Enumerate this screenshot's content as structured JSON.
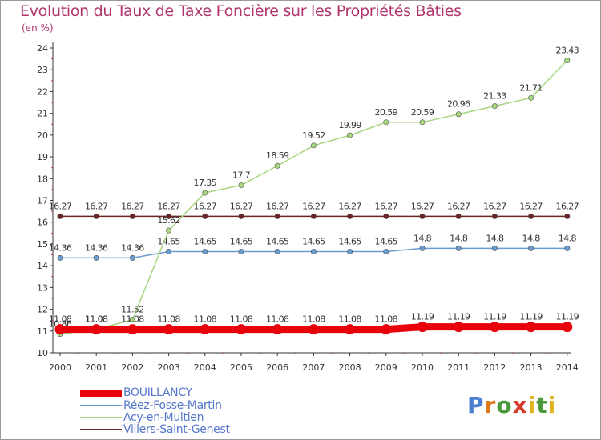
{
  "title": "Evolution du Taux de Taxe Foncière sur les Propriétés Bâties",
  "subtitle": "(en %)",
  "logo": [
    "P",
    "r",
    "o",
    "x",
    "i",
    "t",
    "i"
  ],
  "colors": {
    "title": "#b0366e",
    "axis": "#333333",
    "legend_text": "#5577cc",
    "logo": [
      "#4a7fcf",
      "#e07a1f",
      "#4a9a3a",
      "#d63a2a",
      "#e0b41f",
      "#4a9a3a",
      "#e0b41f"
    ]
  },
  "chart_data": {
    "type": "line",
    "title": "Evolution du Taux de Taxe Foncière sur les Propriétés Bâties",
    "ylabel": "(en %)",
    "xlabel": "",
    "ylim": [
      10,
      24
    ],
    "yticks": [
      "10",
      "11",
      "12",
      "13",
      "14",
      "15",
      "16",
      "17",
      "18",
      "19",
      "20",
      "21",
      "22",
      "23",
      "24"
    ],
    "categories": [
      "2000",
      "2001",
      "2002",
      "2003",
      "2004",
      "2005",
      "2006",
      "2007",
      "2008",
      "2009",
      "2010",
      "2011",
      "2012",
      "2013",
      "2014"
    ],
    "series": [
      {
        "name": "Villers-Saint-Genest",
        "color": "#6b2426",
        "values": [
          16.27,
          16.27,
          16.27,
          16.27,
          16.27,
          16.27,
          16.27,
          16.27,
          16.27,
          16.27,
          16.27,
          16.27,
          16.27,
          16.27,
          16.27
        ],
        "labels": [
          "16.27",
          "16.27",
          "16.27",
          "16.27",
          "16.27",
          "16.27",
          "16.27",
          "16.27",
          "16.27",
          "16.27",
          "16.27",
          "16.27",
          "16.27",
          "16.27",
          "16.27"
        ]
      },
      {
        "name": "Réez-Fosse-Martin",
        "color": "#6a9bcf",
        "values": [
          14.36,
          14.36,
          14.36,
          14.65,
          14.65,
          14.65,
          14.65,
          14.65,
          14.65,
          14.65,
          14.8,
          14.8,
          14.8,
          14.8,
          14.8
        ],
        "labels": [
          "14.36",
          "14.36",
          "14.36",
          "14.65",
          "14.65",
          "14.65",
          "14.65",
          "14.65",
          "14.65",
          "14.65",
          "14.8",
          "14.8",
          "14.8",
          "14.8",
          "14.8"
        ]
      },
      {
        "name": "Acy-en-Multien",
        "color": "#a6d67e",
        "values": [
          10.86,
          11.08,
          11.52,
          15.62,
          17.35,
          17.7,
          18.59,
          19.52,
          19.99,
          20.59,
          20.59,
          20.96,
          21.33,
          21.71,
          23.43
        ],
        "labels": [
          "10.86",
          "11.08",
          "11.52",
          "15.62",
          "17.35",
          "17.7",
          "18.59",
          "19.52",
          "19.99",
          "20.59",
          "20.59",
          "20.96",
          "21.33",
          "21.71",
          "23.43"
        ]
      },
      {
        "name": "BOUILLANCY",
        "color": "#e8000b",
        "values": [
          11.08,
          11.08,
          11.08,
          11.08,
          11.08,
          11.08,
          11.08,
          11.08,
          11.08,
          11.08,
          11.19,
          11.19,
          11.19,
          11.19,
          11.19
        ],
        "labels": [
          "11.08",
          "11.08",
          "11.08",
          "11.08",
          "11.08",
          "11.08",
          "11.08",
          "11.08",
          "11.08",
          "11.08",
          "11.19",
          "11.19",
          "11.19",
          "11.19",
          "11.19"
        ]
      }
    ],
    "legend": [
      "BOUILLANCY",
      "Réez-Fosse-Martin",
      "Acy-en-Multien",
      "Villers-Saint-Genest"
    ]
  }
}
